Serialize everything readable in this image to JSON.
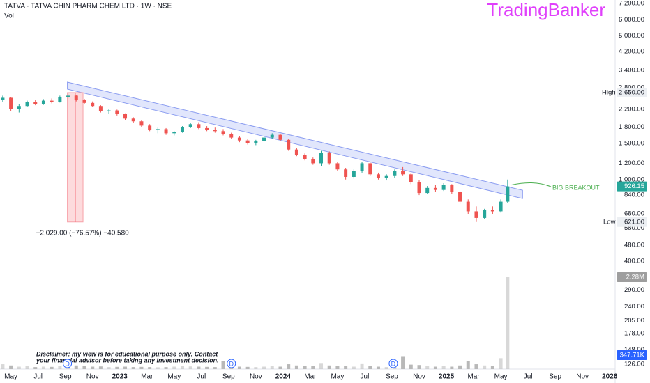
{
  "chart_data": {
    "type": "candlestick",
    "title": "TATVA · TATVA CHIN PHARM CHEM LTD · 1W · NSE",
    "subtitle": "Vol",
    "watermark": "TradingBanker",
    "log_scale": true,
    "up_color": "#26a69a",
    "down_color": "#ef5350",
    "volume_color": "#b8b8b8",
    "x": [
      3.4,
      4.0,
      4.6,
      5.2,
      5.8,
      6.4,
      7.0,
      7.6,
      8.2,
      8.8,
      9.4,
      10.0,
      10.6,
      11.2,
      11.8,
      12.4,
      13.0,
      13.6,
      14.2,
      14.8,
      15.4,
      16.0,
      16.6,
      17.2,
      17.8,
      18.4,
      19.0,
      19.6,
      20.2,
      20.8,
      21.4,
      22.0,
      22.6,
      23.2,
      23.8,
      24.4,
      25.0,
      25.6,
      26.2,
      26.8,
      27.4,
      28.0,
      28.6,
      29.2,
      29.8,
      30.4,
      31.0,
      31.6,
      32.2,
      32.8,
      33.4,
      34.0,
      34.6,
      35.2,
      35.8,
      36.4,
      37.0,
      37.6,
      38.2,
      38.8,
      39.4,
      40.0,
      40.5
    ],
    "open": [
      2450,
      2500,
      2200,
      2280,
      2380,
      2330,
      2420,
      2380,
      2520,
      2560,
      2450,
      2360,
      2280,
      2150,
      2170,
      2080,
      1980,
      1920,
      1830,
      1750,
      1760,
      1680,
      1700,
      1800,
      1860,
      1780,
      1750,
      1720,
      1660,
      1600,
      1550,
      1500,
      1540,
      1600,
      1650,
      1560,
      1400,
      1320,
      1260,
      1200,
      1350,
      1200,
      1120,
      1030,
      1100,
      1200,
      1060,
      1020,
      1040,
      1100,
      1060,
      970,
      860,
      910,
      890,
      940,
      870,
      780,
      700,
      650,
      710,
      700,
      780
    ],
    "high": [
      2560,
      2520,
      2320,
      2420,
      2450,
      2460,
      2480,
      2560,
      2650,
      2580,
      2470,
      2400,
      2300,
      2200,
      2190,
      2100,
      2010,
      1950,
      1860,
      1790,
      1780,
      1720,
      1820,
      1880,
      1900,
      1820,
      1790,
      1760,
      1690,
      1630,
      1580,
      1560,
      1620,
      1680,
      1670,
      1580,
      1420,
      1340,
      1280,
      1380,
      1370,
      1220,
      1140,
      1120,
      1220,
      1210,
      1080,
      1060,
      1120,
      1150,
      1080,
      990,
      930,
      940,
      960,
      950,
      880,
      800,
      740,
      720,
      740,
      800,
      1000
    ],
    "low": [
      2380,
      2150,
      2120,
      2250,
      2300,
      2310,
      2350,
      2370,
      2480,
      2400,
      2330,
      2250,
      2120,
      2080,
      2050,
      1950,
      1880,
      1800,
      1720,
      1680,
      1650,
      1640,
      1690,
      1780,
      1760,
      1720,
      1690,
      1640,
      1580,
      1520,
      1480,
      1470,
      1530,
      1580,
      1540,
      1380,
      1300,
      1240,
      1180,
      1160,
      1180,
      1100,
      1000,
      1010,
      1080,
      1040,
      1000,
      990,
      1020,
      1040,
      950,
      840,
      850,
      870,
      880,
      850,
      760,
      680,
      621,
      640,
      680,
      690,
      770
    ],
    "close": [
      2500,
      2200,
      2280,
      2380,
      2330,
      2420,
      2380,
      2520,
      2560,
      2450,
      2360,
      2280,
      2150,
      2170,
      2080,
      1980,
      1920,
      1830,
      1750,
      1760,
      1680,
      1700,
      1800,
      1860,
      1780,
      1750,
      1720,
      1660,
      1600,
      1550,
      1500,
      1540,
      1600,
      1650,
      1560,
      1400,
      1320,
      1260,
      1200,
      1350,
      1200,
      1120,
      1030,
      1100,
      1200,
      1060,
      1020,
      1040,
      1100,
      1060,
      970,
      860,
      910,
      890,
      940,
      870,
      780,
      700,
      650,
      710,
      700,
      780,
      926.15
    ],
    "volume": [
      120000,
      90000,
      60000,
      70000,
      50000,
      60000,
      55000,
      80000,
      150000,
      90000,
      70000,
      60000,
      65000,
      50000,
      55000,
      60000,
      50000,
      55000,
      50000,
      45000,
      50000,
      60000,
      70000,
      65000,
      60000,
      55000,
      50000,
      200000,
      80000,
      60000,
      55000,
      50000,
      60000,
      75000,
      60000,
      120000,
      90000,
      80000,
      70000,
      150000,
      90000,
      70000,
      80000,
      60000,
      140000,
      80000,
      60000,
      50000,
      90000,
      320000,
      110000,
      100000,
      70000,
      60000,
      80000,
      60000,
      90000,
      200000,
      120000,
      90000,
      80000,
      270000,
      2280000
    ],
    "volume_lim": [
      0,
      2280000
    ],
    "volume_tag": {
      "value": 2280000,
      "label": "2.28M"
    },
    "volume_ma_tag": {
      "value": 347710,
      "label": "347.71K"
    },
    "xlim": [
      3.2,
      48.4
    ],
    "xticks": [
      {
        "value": 4,
        "label": "May"
      },
      {
        "value": 6,
        "label": "Jul"
      },
      {
        "value": 8,
        "label": "Sep"
      },
      {
        "value": 10,
        "label": "Nov"
      },
      {
        "value": 12,
        "label": "2023"
      },
      {
        "value": 14,
        "label": "Mar"
      },
      {
        "value": 16,
        "label": "May"
      },
      {
        "value": 18,
        "label": "Jul"
      },
      {
        "value": 20,
        "label": "Sep"
      },
      {
        "value": 22,
        "label": "Nov"
      },
      {
        "value": 24,
        "label": "2024"
      },
      {
        "value": 26,
        "label": "Mar"
      },
      {
        "value": 28,
        "label": "May"
      },
      {
        "value": 30,
        "label": "Jul"
      },
      {
        "value": 32,
        "label": "Sep"
      },
      {
        "value": 34,
        "label": "Nov"
      },
      {
        "value": 36,
        "label": "2025"
      },
      {
        "value": 38,
        "label": "Mar"
      },
      {
        "value": 40,
        "label": "May"
      },
      {
        "value": 42,
        "label": "Jul"
      },
      {
        "value": 44,
        "label": "Sep"
      },
      {
        "value": 46,
        "label": "Nov"
      },
      {
        "value": 48,
        "label": "2026"
      }
    ],
    "ylim": [
      126,
      7200
    ],
    "yticks": [
      {
        "value": 7200,
        "label": "7,200.00"
      },
      {
        "value": 6000,
        "label": "6,000.00"
      },
      {
        "value": 5000,
        "label": "5,000.00"
      },
      {
        "value": 4200,
        "label": "4,200.00"
      },
      {
        "value": 3400,
        "label": "3,400.00"
      },
      {
        "value": 2800,
        "label": "2,800.00"
      },
      {
        "value": 2200,
        "label": "2,200.00"
      },
      {
        "value": 1800,
        "label": "1,800.00"
      },
      {
        "value": 1500,
        "label": "1,500.00"
      },
      {
        "value": 1200,
        "label": "1,200.00"
      },
      {
        "value": 1000,
        "label": "1,000.00"
      },
      {
        "value": 840,
        "label": "840.00"
      },
      {
        "value": 680,
        "label": "680.00"
      },
      {
        "value": 580,
        "label": "580.00"
      },
      {
        "value": 480,
        "label": "480.00"
      },
      {
        "value": 400,
        "label": "400.00"
      },
      {
        "value": 290,
        "label": "290.00"
      },
      {
        "value": 240,
        "label": "240.00"
      },
      {
        "value": 205,
        "label": "205.00"
      },
      {
        "value": 178,
        "label": "178.00"
      },
      {
        "value": 148,
        "label": "148.00"
      },
      {
        "value": 126,
        "label": "126.00"
      }
    ],
    "high_tag": {
      "name": "High",
      "value": 2650,
      "label": "2,650.00"
    },
    "low_tag": {
      "name": "Low",
      "value": 621,
      "label": "621.00"
    },
    "last_tag": {
      "value": 926.15,
      "label": "926.15"
    },
    "trend_channel": {
      "x": [
        8.15,
        41.6
      ],
      "upper": [
        2980,
        887
      ],
      "lower": [
        2756,
        808
      ]
    },
    "measure": {
      "x": [
        8.15,
        9.3
      ],
      "from": 2650,
      "to": 621,
      "label": "−2,029.00 (−76.57%) −40,580"
    },
    "annotation": "BIG BREAKOUT",
    "dividends": {
      "x": [
        8.15,
        20.2,
        32.1
      ],
      "label": "D"
    },
    "disclaimer": [
      "Disclaimer: my view is for educational purpose only. Contact",
      "your financial advisor before taking any investment decision."
    ]
  }
}
